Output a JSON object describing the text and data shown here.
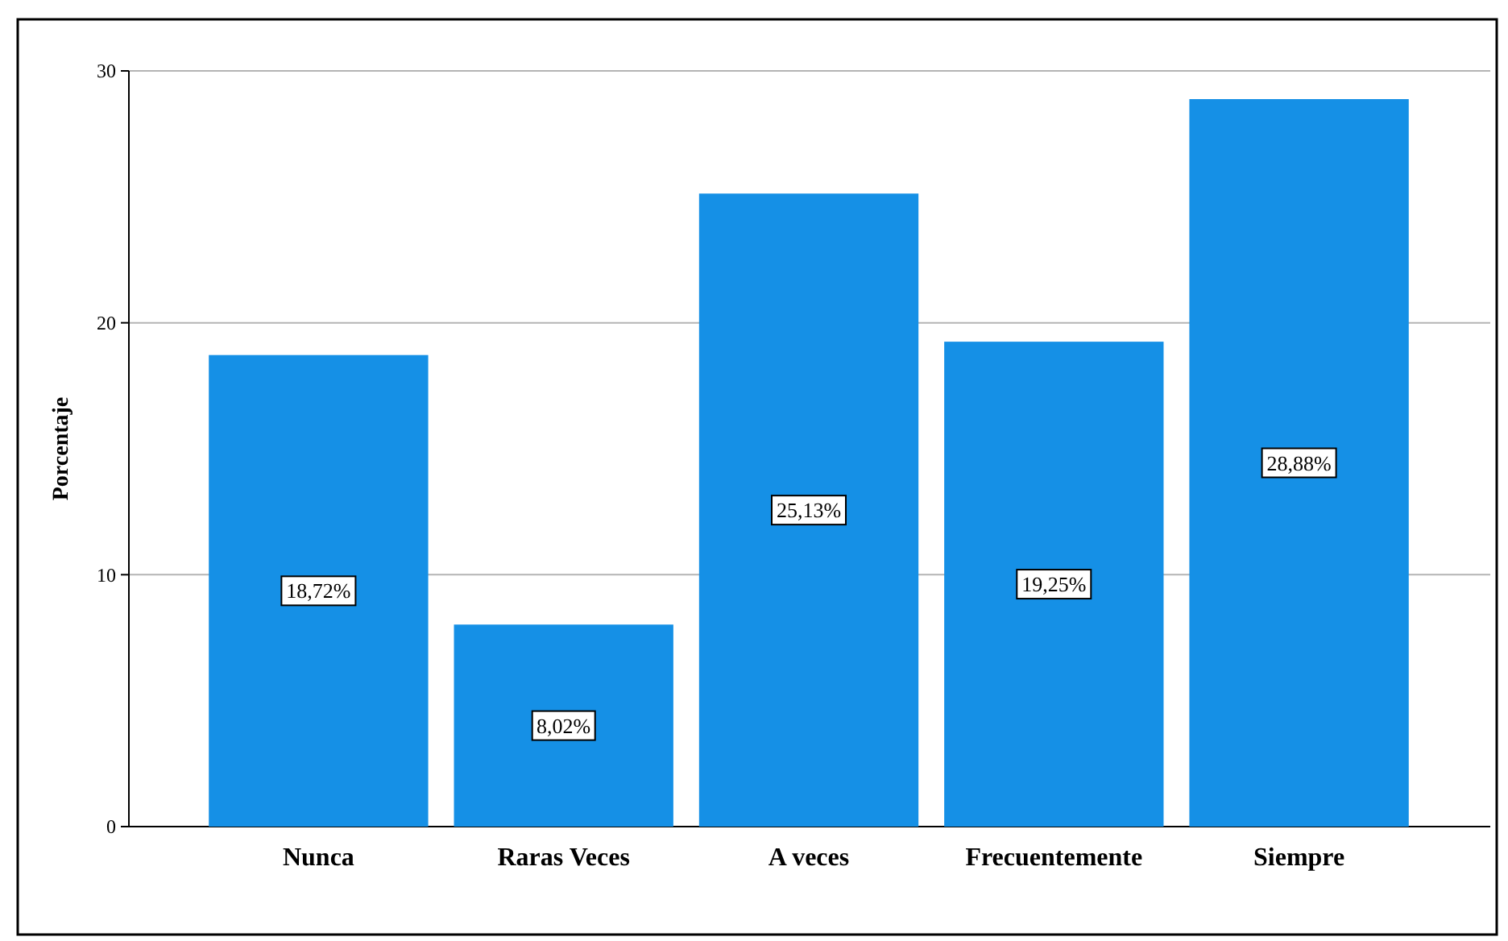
{
  "chart_data": {
    "type": "bar",
    "ylabel": "Porcentaje",
    "categories": [
      "Nunca",
      "Raras Veces",
      "A veces",
      "Frecuentemente",
      "Siempre"
    ],
    "values": [
      18.72,
      8.02,
      25.13,
      19.25,
      28.88
    ],
    "value_labels": [
      "18,72%",
      "8,02%",
      "25,13%",
      "19,25%",
      "28,88%"
    ],
    "color": "#1590e6",
    "ylim": [
      0,
      30
    ],
    "yticks": [
      0,
      10,
      20,
      30
    ],
    "grid": "y"
  }
}
